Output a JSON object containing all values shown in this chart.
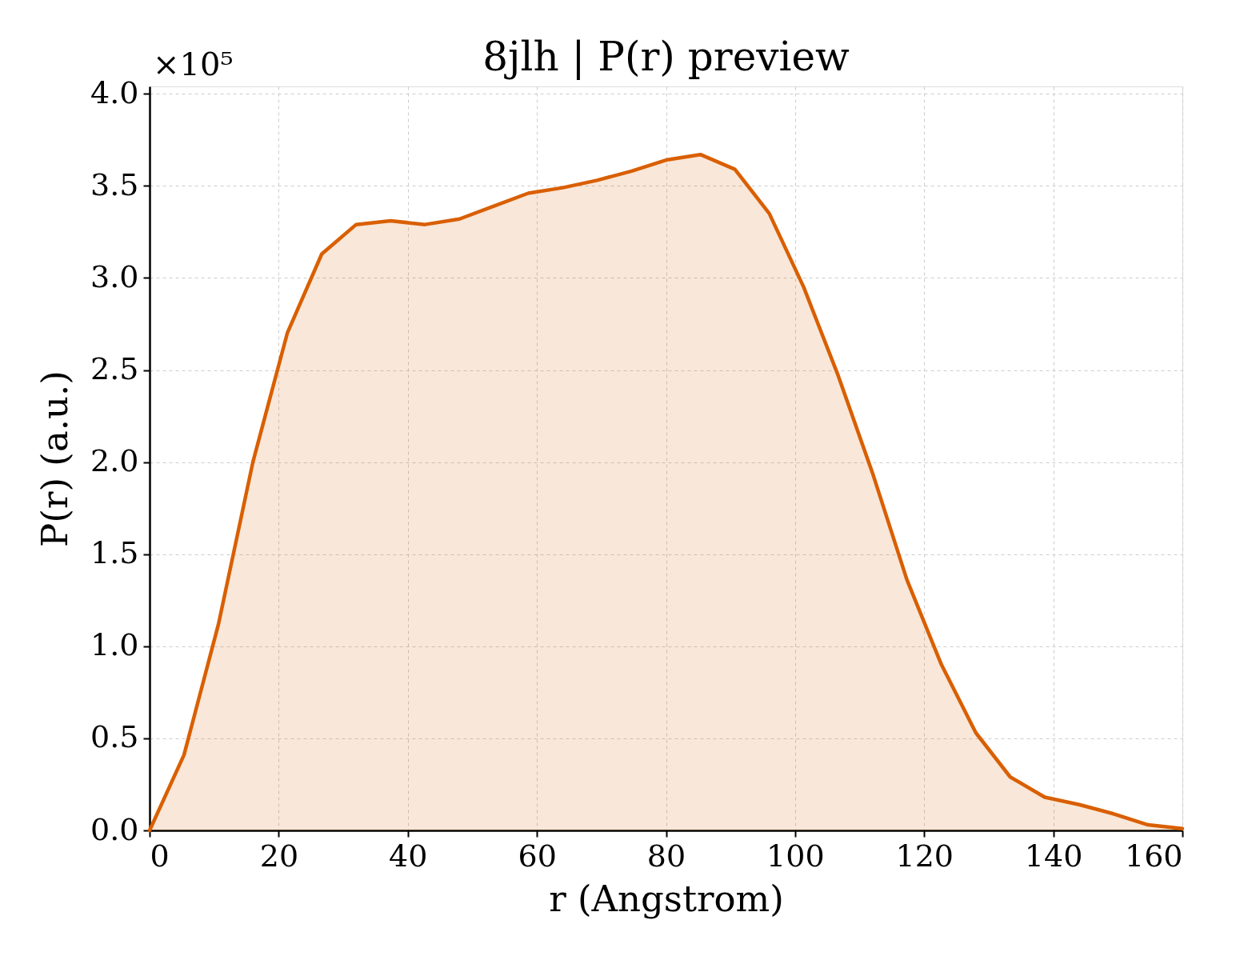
{
  "chart_data": {
    "type": "area",
    "title": "8jlh | P(r) preview",
    "xlabel": "r (Angstrom)",
    "ylabel": "P(r) (a.u.)",
    "annotations": [
      "×10⁵"
    ],
    "x": [
      0,
      5.33,
      10.67,
      16,
      21.33,
      26.67,
      32,
      37.33,
      42.67,
      48,
      53.33,
      58.67,
      64,
      69.33,
      74.67,
      80,
      85.33,
      90.67,
      96,
      101.33,
      106.67,
      112,
      117.33,
      122.67,
      128,
      133.33,
      138.67,
      144,
      149.33,
      154.67,
      160
    ],
    "series": [
      {
        "color": "#d95f02",
        "values": [
          0,
          0.41,
          1.12,
          2.0,
          2.7,
          3.13,
          3.29,
          3.31,
          3.29,
          3.32,
          3.39,
          3.46,
          3.49,
          3.53,
          3.58,
          3.64,
          3.67,
          3.59,
          3.35,
          2.95,
          2.47,
          1.94,
          1.36,
          0.9,
          0.53,
          0.29,
          0.18,
          0.14,
          0.09,
          0.03,
          0.01
        ]
      }
    ],
    "xlim": [
      0,
      160
    ],
    "xticks": [
      0,
      20,
      40,
      60,
      80,
      100,
      120,
      140,
      160
    ],
    "ylim": [
      0,
      4.04
    ],
    "yticks": [
      {
        "value": 0,
        "label": "0.0"
      },
      0.5,
      {
        "value": 1,
        "label": "1.0"
      },
      1.5,
      {
        "value": 2,
        "label": "2.0"
      },
      2.5,
      {
        "value": 3,
        "label": "3.0"
      },
      3.5,
      {
        "value": 4,
        "label": "4.0"
      }
    ],
    "grid": true,
    "line_style": "solid"
  }
}
